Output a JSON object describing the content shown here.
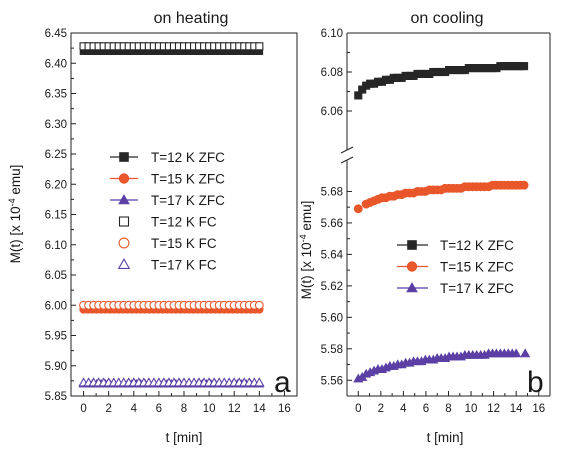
{
  "chart_data": [
    {
      "panel": "a",
      "type": "scatter",
      "title": "on heating",
      "xlabel": "t [min]",
      "ylabel_main": "M(t) [x 10",
      "ylabel_sup": "-4",
      "ylabel_end": " emu]",
      "panel_label": "a",
      "xlim": [
        -1,
        17
      ],
      "ylim": [
        5.85,
        6.45
      ],
      "xticks": [
        0,
        2,
        4,
        6,
        8,
        10,
        12,
        14,
        16
      ],
      "yticks": [
        5.85,
        5.9,
        5.95,
        6.0,
        6.05,
        6.1,
        6.15,
        6.2,
        6.25,
        6.3,
        6.35,
        6.4,
        6.45
      ],
      "ytick_labels": [
        "5.85",
        "5.90",
        "5.95",
        "6.00",
        "6.05",
        "6.10",
        "6.15",
        "6.20",
        "6.25",
        "6.30",
        "6.35",
        "6.40",
        "6.45"
      ],
      "legend_placement": "middle-left",
      "series": [
        {
          "name": "T=12 K ZFC",
          "marker": "square",
          "filled": true,
          "color": "#262626",
          "line": true,
          "x_start": 0,
          "x_end": 14,
          "x_step": 0.35,
          "y": 6.42
        },
        {
          "name": "T=15 K ZFC",
          "marker": "circle",
          "filled": true,
          "color": "#e8562a",
          "line": true,
          "x_start": 0,
          "x_end": 14,
          "x_step": 0.35,
          "y": 5.993
        },
        {
          "name": "T=17 K ZFC",
          "marker": "triangle",
          "filled": true,
          "color": "#5b3fa4",
          "line": true,
          "x_start": 0,
          "x_end": 14,
          "x_step": 0.35,
          "y": 5.87
        },
        {
          "name": "T=12 K FC",
          "marker": "square",
          "filled": false,
          "color": "#262626",
          "line": false,
          "x_start": 0,
          "x_end": 14,
          "x_step": 0.4,
          "y": 6.428
        },
        {
          "name": "T=15 K FC",
          "marker": "circle",
          "filled": false,
          "color": "#e8562a",
          "line": false,
          "x_start": 0,
          "x_end": 14,
          "x_step": 0.4,
          "y": 6.0
        },
        {
          "name": "T=17 K FC",
          "marker": "triangle",
          "filled": false,
          "color": "#5b3fa4",
          "line": false,
          "x_start": 0,
          "x_end": 14,
          "x_step": 0.4,
          "y": 5.872
        }
      ]
    },
    {
      "panel": "b",
      "type": "scatter",
      "title": "on cooling",
      "xlabel": "t [min]",
      "ylabel_main": "M(t) [x 10",
      "ylabel_sup": "-4",
      "ylabel_end": " emu]",
      "panel_label": "b",
      "xlim": [
        -1,
        17
      ],
      "broken_axis": true,
      "upper_ylim": [
        6.04,
        6.1
      ],
      "upper_yticks": [
        6.06,
        6.08,
        6.1
      ],
      "upper_ytick_labels": [
        "6.06",
        "6.08",
        "6.10"
      ],
      "lower_ylim": [
        5.55,
        5.7
      ],
      "lower_yticks": [
        5.56,
        5.58,
        5.6,
        5.62,
        5.64,
        5.66,
        5.68
      ],
      "lower_ytick_labels": [
        "5.56",
        "5.58",
        "5.60",
        "5.62",
        "5.64",
        "5.66",
        "5.68"
      ],
      "xticks": [
        0,
        2,
        4,
        6,
        8,
        10,
        12,
        14,
        16
      ],
      "legend_placement": "middle-right",
      "series": [
        {
          "name": "T=12 K ZFC",
          "marker": "square",
          "filled": true,
          "color": "#262626",
          "x": [
            0,
            0.35,
            0.7,
            1.05,
            1.4,
            1.75,
            2.1,
            2.45,
            2.8,
            3.15,
            3.5,
            3.85,
            4.2,
            4.55,
            4.9,
            5.25,
            5.6,
            5.95,
            6.3,
            6.65,
            7.0,
            7.35,
            7.7,
            8.05,
            8.4,
            8.75,
            9.1,
            9.45,
            9.8,
            10.15,
            10.5,
            10.85,
            11.2,
            11.55,
            11.9,
            12.25,
            12.6,
            12.95,
            13.3,
            13.65,
            14.0,
            14.35,
            14.7
          ],
          "y": [
            6.068,
            6.071,
            6.073,
            6.074,
            6.074,
            6.075,
            6.075,
            6.076,
            6.076,
            6.077,
            6.077,
            6.077,
            6.078,
            6.078,
            6.078,
            6.079,
            6.079,
            6.079,
            6.079,
            6.08,
            6.08,
            6.08,
            6.08,
            6.081,
            6.081,
            6.081,
            6.081,
            6.081,
            6.082,
            6.082,
            6.082,
            6.082,
            6.082,
            6.082,
            6.082,
            6.082,
            6.083,
            6.083,
            6.083,
            6.083,
            6.083,
            6.083,
            6.083
          ]
        },
        {
          "name": "T=15 K ZFC",
          "marker": "circle",
          "filled": true,
          "color": "#e8562a",
          "x": [
            0,
            0.7,
            1.05,
            1.4,
            1.75,
            2.1,
            2.45,
            2.8,
            3.15,
            3.5,
            3.85,
            4.2,
            4.55,
            4.9,
            5.25,
            5.6,
            5.95,
            6.3,
            6.65,
            7.0,
            7.35,
            7.7,
            8.05,
            8.4,
            8.75,
            9.1,
            9.45,
            9.8,
            10.15,
            10.5,
            10.85,
            11.2,
            11.55,
            11.9,
            12.25,
            12.6,
            12.95,
            13.3,
            13.65,
            14.0,
            14.35,
            14.7
          ],
          "y": [
            5.669,
            5.672,
            5.673,
            5.674,
            5.675,
            5.676,
            5.676,
            5.677,
            5.677,
            5.678,
            5.678,
            5.679,
            5.679,
            5.679,
            5.68,
            5.68,
            5.68,
            5.681,
            5.681,
            5.681,
            5.681,
            5.682,
            5.682,
            5.682,
            5.682,
            5.682,
            5.683,
            5.683,
            5.683,
            5.683,
            5.683,
            5.683,
            5.683,
            5.684,
            5.684,
            5.684,
            5.684,
            5.684,
            5.684,
            5.684,
            5.684,
            5.684
          ]
        },
        {
          "name": "T=17 K ZFC",
          "marker": "triangle",
          "filled": true,
          "color": "#5b3fa4",
          "x": [
            0,
            0.35,
            0.7,
            1.05,
            1.4,
            1.75,
            2.1,
            2.45,
            2.8,
            3.15,
            3.5,
            3.85,
            4.2,
            4.55,
            4.9,
            5.25,
            5.6,
            5.95,
            6.3,
            6.65,
            7.0,
            7.35,
            7.7,
            8.05,
            8.4,
            8.75,
            9.1,
            9.45,
            9.8,
            10.15,
            10.5,
            10.85,
            11.2,
            11.55,
            11.9,
            12.25,
            12.6,
            12.95,
            13.3,
            13.65,
            14.0,
            14.8
          ],
          "y": [
            5.561,
            5.562,
            5.564,
            5.565,
            5.566,
            5.567,
            5.567,
            5.568,
            5.569,
            5.569,
            5.57,
            5.57,
            5.571,
            5.571,
            5.572,
            5.572,
            5.572,
            5.573,
            5.573,
            5.573,
            5.574,
            5.574,
            5.574,
            5.575,
            5.575,
            5.575,
            5.575,
            5.576,
            5.576,
            5.576,
            5.576,
            5.576,
            5.576,
            5.577,
            5.577,
            5.577,
            5.577,
            5.577,
            5.577,
            5.577,
            5.577,
            5.577
          ]
        }
      ]
    }
  ]
}
